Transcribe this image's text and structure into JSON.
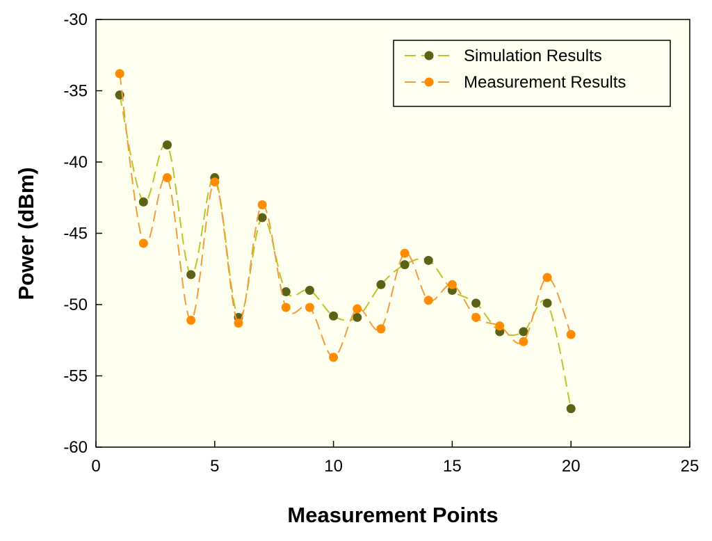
{
  "chart_data": {
    "type": "line",
    "title": "",
    "xlabel": "Measurement Points",
    "ylabel": "Power (dBm)",
    "xlim": [
      0,
      25
    ],
    "ylim": [
      -60,
      -30
    ],
    "xticks": [
      0,
      5,
      10,
      15,
      20,
      25
    ],
    "yticks": [
      -60,
      -55,
      -50,
      -45,
      -40,
      -35,
      -30
    ],
    "grid": false,
    "legend_position": "top-right",
    "plot_background": "#fffff0",
    "series": [
      {
        "name": "Simulation Results",
        "color": "#b8c62a",
        "marker_color": "#5b6216",
        "x": [
          1,
          2,
          3,
          4,
          5,
          6,
          7,
          8,
          9,
          10,
          11,
          12,
          13,
          14,
          15,
          16,
          17,
          18,
          19,
          20
        ],
        "y": [
          -35.3,
          -42.8,
          -38.8,
          -47.9,
          -41.1,
          -50.9,
          -43.9,
          -49.1,
          -49.0,
          -50.8,
          -50.9,
          -48.6,
          -47.2,
          -46.9,
          -49.0,
          -49.9,
          -51.9,
          -51.9,
          -49.9,
          -57.3
        ]
      },
      {
        "name": "Measurement Results",
        "color": "#f39c3b",
        "marker_color": "#ff8c00",
        "x": [
          1,
          2,
          3,
          4,
          5,
          6,
          7,
          8,
          9,
          10,
          11,
          12,
          13,
          14,
          15,
          16,
          17,
          18,
          19,
          20
        ],
        "y": [
          -33.8,
          -45.7,
          -41.1,
          -51.1,
          -41.4,
          -51.3,
          -43.0,
          -50.2,
          -50.2,
          -53.7,
          -50.3,
          -51.7,
          -46.4,
          -49.7,
          -48.6,
          -50.9,
          -51.5,
          -52.6,
          -48.1,
          -52.1
        ]
      }
    ]
  }
}
